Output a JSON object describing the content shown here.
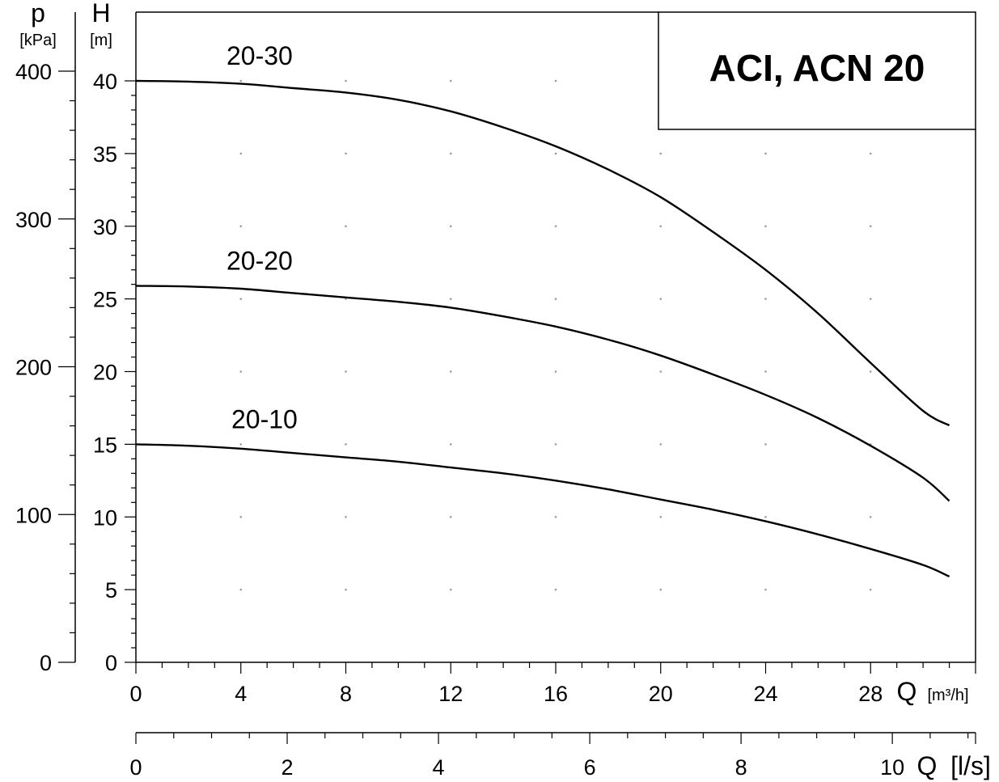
{
  "chart_data": {
    "type": "line",
    "title": "ACI, ACN 20",
    "axes": {
      "p": {
        "label": "p",
        "unit": "[kPa]",
        "range": [
          0,
          400
        ],
        "ticks": [
          0,
          100,
          200,
          300,
          400
        ]
      },
      "h": {
        "label": "H",
        "unit": "[m]",
        "range": [
          0,
          40
        ],
        "ticks": [
          0,
          5,
          10,
          15,
          20,
          25,
          30,
          35,
          40
        ]
      },
      "q_m3h": {
        "label": "Q",
        "unit": "[m³/h]",
        "range": [
          0,
          32
        ],
        "ticks": [
          0,
          4,
          8,
          12,
          16,
          20,
          24,
          28
        ]
      },
      "q_ls": {
        "label": "Q",
        "unit": "[l/s]",
        "range": [
          0,
          11.1
        ],
        "ticks": [
          0,
          2,
          4,
          6,
          8,
          10
        ]
      }
    },
    "series": [
      {
        "name": "20-30",
        "x": [
          0,
          2,
          4,
          6,
          8,
          10,
          12,
          14,
          16,
          18,
          20,
          22,
          24,
          26,
          28,
          30,
          31
        ],
        "y": [
          40,
          39.95,
          39.8,
          39.5,
          39.2,
          38.7,
          37.9,
          36.8,
          35.5,
          33.9,
          32.0,
          29.6,
          27.0,
          24.0,
          20.6,
          17.3,
          16.3
        ]
      },
      {
        "name": "20-20",
        "x": [
          0,
          2,
          4,
          6,
          8,
          10,
          12,
          14,
          16,
          18,
          20,
          22,
          24,
          26,
          28,
          30,
          31
        ],
        "y": [
          25.9,
          25.85,
          25.7,
          25.4,
          25.1,
          24.8,
          24.4,
          23.8,
          23.1,
          22.2,
          21.1,
          19.8,
          18.4,
          16.8,
          14.9,
          12.7,
          11.1
        ]
      },
      {
        "name": "20-10",
        "x": [
          0,
          2,
          4,
          6,
          8,
          10,
          12,
          14,
          16,
          18,
          20,
          22,
          24,
          26,
          28,
          30,
          31
        ],
        "y": [
          15.0,
          14.9,
          14.7,
          14.4,
          14.1,
          13.8,
          13.4,
          13.0,
          12.5,
          11.9,
          11.2,
          10.5,
          9.7,
          8.8,
          7.8,
          6.7,
          5.9
        ]
      }
    ],
    "grid": "dotted"
  }
}
